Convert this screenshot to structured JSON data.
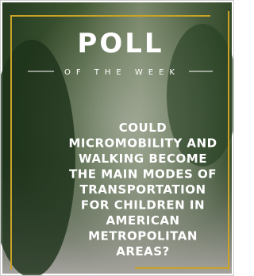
{
  "poster": {
    "title": "POLL",
    "subtitle": "OF THE WEEK",
    "question_lines": [
      "COULD",
      "MICROMOBILITY AND",
      "WALKING BECOME",
      "THE MAIN MODES OF",
      "TRANSPORTATION",
      "FOR CHILDREN IN",
      "AMERICAN",
      "METROPOLITAN",
      "AREAS?"
    ]
  }
}
